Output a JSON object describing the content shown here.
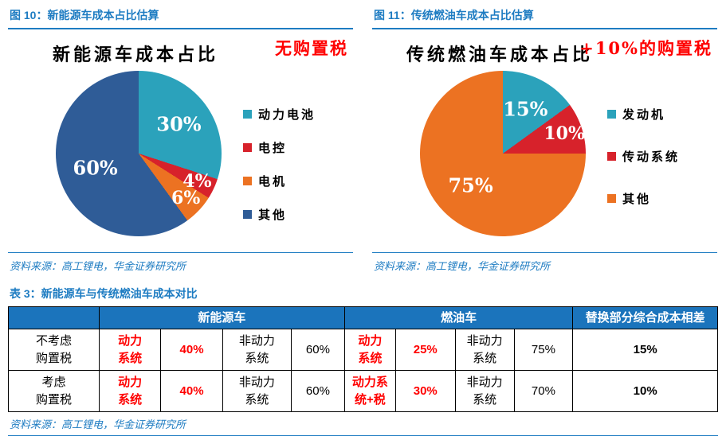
{
  "figures": [
    {
      "header": "图 10：新能源车成本占比估算",
      "source": "资料来源：高工锂电，华金证券研究所"
    },
    {
      "header": "图 11：传统燃油车成本占比估算",
      "source": "资料来源：高工锂电，华金证券研究所"
    }
  ],
  "chart_data": [
    {
      "type": "pie",
      "title": "新能源车成本占比",
      "annotation": "无购置税",
      "legend_position": "right",
      "start_angle_deg": 0,
      "direction": "clockwise",
      "slices": [
        {
          "label": "动力电池",
          "value": 30,
          "pct_label": "30%",
          "color": "#2ba2bb"
        },
        {
          "label": "电控",
          "value": 4,
          "pct_label": "4%",
          "color": "#d7222b"
        },
        {
          "label": "电机",
          "value": 6,
          "pct_label": "6%",
          "color": "#ec7222"
        },
        {
          "label": "其他",
          "value": 60,
          "pct_label": "60%",
          "color": "#2f5c97"
        }
      ]
    },
    {
      "type": "pie",
      "title": "传统燃油车成本占比",
      "annotation": "+10%的购置税",
      "legend_position": "right",
      "start_angle_deg": 0,
      "direction": "clockwise",
      "slices": [
        {
          "label": "发动机",
          "value": 15,
          "pct_label": "15%",
          "color": "#2ba2bb"
        },
        {
          "label": "传动系统",
          "value": 10,
          "pct_label": "10%",
          "color": "#d7222b"
        },
        {
          "label": "其他",
          "value": 75,
          "pct_label": "75%",
          "color": "#ec7222"
        }
      ]
    }
  ],
  "table": {
    "title": "表 3：新能源车与传统燃油车成本对比",
    "source": "资料来源：高工锂电，华金证券研究所",
    "header_groups": [
      {
        "text": "",
        "span": 1
      },
      {
        "text": "新能源车",
        "span": 4
      },
      {
        "text": "燃油车",
        "span": 4
      },
      {
        "text": "替换部分综合成本相差",
        "span": 1
      }
    ],
    "rows": [
      {
        "cells": [
          {
            "text": "不考虑\n购置税",
            "style": "plain"
          },
          {
            "text": "动力\n系统",
            "style": "red"
          },
          {
            "text": "40%",
            "style": "red"
          },
          {
            "text": "非动力\n系统",
            "style": "plain"
          },
          {
            "text": "60%",
            "style": "plain"
          },
          {
            "text": "动力\n系统",
            "style": "red"
          },
          {
            "text": "25%",
            "style": "red"
          },
          {
            "text": "非动力\n系统",
            "style": "plain"
          },
          {
            "text": "75%",
            "style": "plain"
          },
          {
            "text": "15%",
            "style": "bold"
          }
        ]
      },
      {
        "cells": [
          {
            "text": "考虑\n购置税",
            "style": "plain"
          },
          {
            "text": "动力\n系统",
            "style": "red"
          },
          {
            "text": "40%",
            "style": "red"
          },
          {
            "text": "非动力\n系统",
            "style": "plain"
          },
          {
            "text": "60%",
            "style": "plain"
          },
          {
            "text": "动力系\n统+税",
            "style": "red"
          },
          {
            "text": "30%",
            "style": "red"
          },
          {
            "text": "非动力\n系统",
            "style": "plain"
          },
          {
            "text": "70%",
            "style": "plain"
          },
          {
            "text": "10%",
            "style": "bold"
          }
        ]
      }
    ]
  },
  "colors": {
    "heading_blue": "#1e7cc2",
    "table_header_blue": "#1b74bc",
    "annotation_red": "#ff0000",
    "teal": "#2ba2bb",
    "red": "#d7222b",
    "orange": "#ec7222",
    "dark_blue": "#2f5c97"
  }
}
